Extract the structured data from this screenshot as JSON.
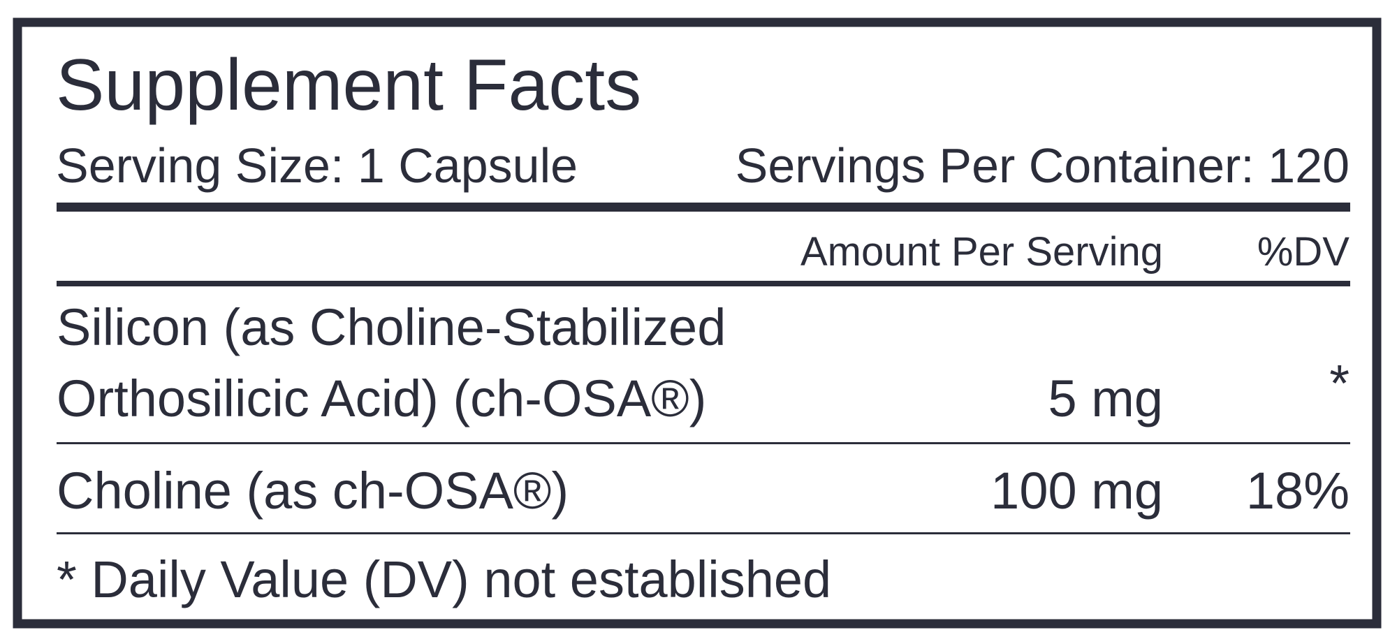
{
  "header": {
    "title": "Supplement Facts",
    "serving_size": "Serving Size: 1 Capsule",
    "servings_per_container": "Servings Per Container: 120"
  },
  "table": {
    "columns": [
      "Amount Per Serving",
      "%DV"
    ],
    "rows": [
      {
        "name": [
          "Silicon (as Choline-Stabilized",
          "Orthosilicic Acid) (ch-OSA®)"
        ],
        "amount": "5 mg",
        "dv": "*"
      },
      {
        "name": [
          "Choline (as ch-OSA®)"
        ],
        "amount": "100 mg",
        "dv": "18%"
      }
    ]
  },
  "footnote": "* Daily Value (DV) not established"
}
